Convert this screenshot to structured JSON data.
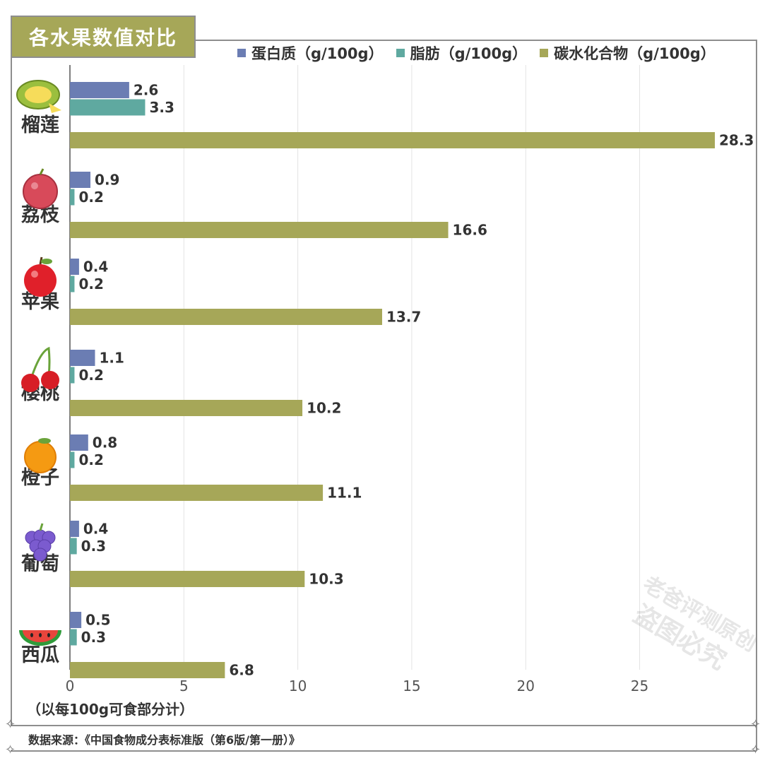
{
  "title": "各水果数值对比",
  "unit_note": "（以每100g可食部分计）",
  "source": "数据来源：《中国食物成分表标准版（第6版/第一册）》",
  "watermark": {
    "line1": "老爸评测原创",
    "line2": "盗图必究"
  },
  "colors": {
    "protein": "#6b7db3",
    "fat": "#5fa9a0",
    "carb": "#a6a758",
    "title_bg": "#a6a758"
  },
  "chart_data": {
    "type": "bar",
    "orientation": "horizontal",
    "categories": [
      "榴莲",
      "荔枝",
      "苹果",
      "樱桃",
      "橙子",
      "葡萄",
      "西瓜"
    ],
    "category_icons": [
      "durian-icon",
      "lychee-icon",
      "apple-icon",
      "cherry-icon",
      "orange-icon",
      "grape-icon",
      "watermelon-icon"
    ],
    "series": [
      {
        "name": "蛋白质（g/100g）",
        "values": [
          2.6,
          0.9,
          0.4,
          1.1,
          0.8,
          0.4,
          0.5
        ],
        "labels": [
          "2.6",
          "0.9",
          "0.4",
          "1.1",
          "0.8",
          "0.4",
          "0.5"
        ]
      },
      {
        "name": "脂肪（g/100g）",
        "values": [
          3.3,
          0.2,
          0.2,
          0.2,
          0.2,
          0.3,
          0.3
        ],
        "labels": [
          "3.3",
          "0.2",
          "0.2",
          "0.2",
          "0.2",
          "0.3",
          "0.3"
        ]
      },
      {
        "name": "碳水化合物（g/100g）",
        "values": [
          28.3,
          16.6,
          13.7,
          10.2,
          11.1,
          10.3,
          6.8
        ],
        "labels": [
          "28.3",
          "16.6",
          "13.7",
          "10.2",
          "11.1",
          "10.3",
          "6.8"
        ]
      }
    ],
    "x_ticks": [
      "0",
      "5",
      "10",
      "15",
      "20",
      "25"
    ],
    "xlim": [
      0,
      28.3
    ],
    "grid": "vertical",
    "legend": "top-right"
  }
}
